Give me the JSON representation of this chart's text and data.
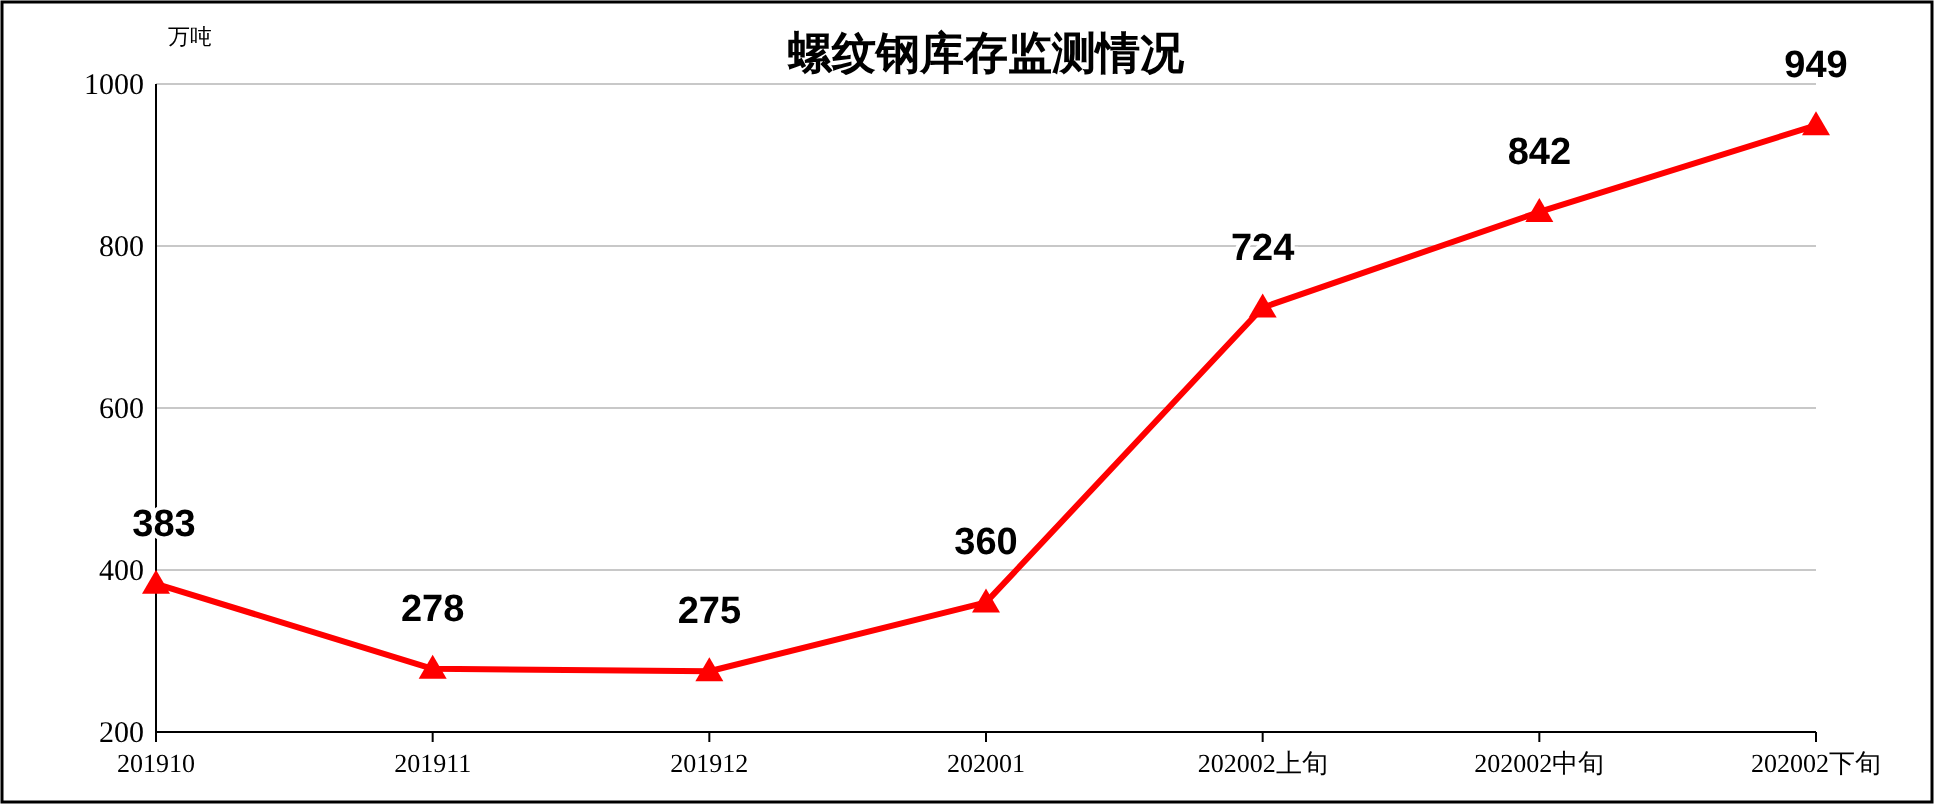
{
  "chart_data": {
    "type": "line",
    "title": "螺纹钢库存监测情况",
    "ylabel": "万吨",
    "categories": [
      "201910",
      "201911",
      "201912",
      "202001",
      "202002上旬",
      "202002中旬",
      "202002下旬"
    ],
    "series": [
      {
        "color": "#ff0000",
        "values": [
          383,
          278,
          275,
          360,
          724,
          842,
          949
        ]
      }
    ],
    "ylim": [
      200,
      1000
    ],
    "yticks": [
      200,
      400,
      600,
      800,
      1000
    ],
    "grid": "y",
    "marker": "triangle",
    "data_labels": true,
    "line_style": "solid"
  }
}
